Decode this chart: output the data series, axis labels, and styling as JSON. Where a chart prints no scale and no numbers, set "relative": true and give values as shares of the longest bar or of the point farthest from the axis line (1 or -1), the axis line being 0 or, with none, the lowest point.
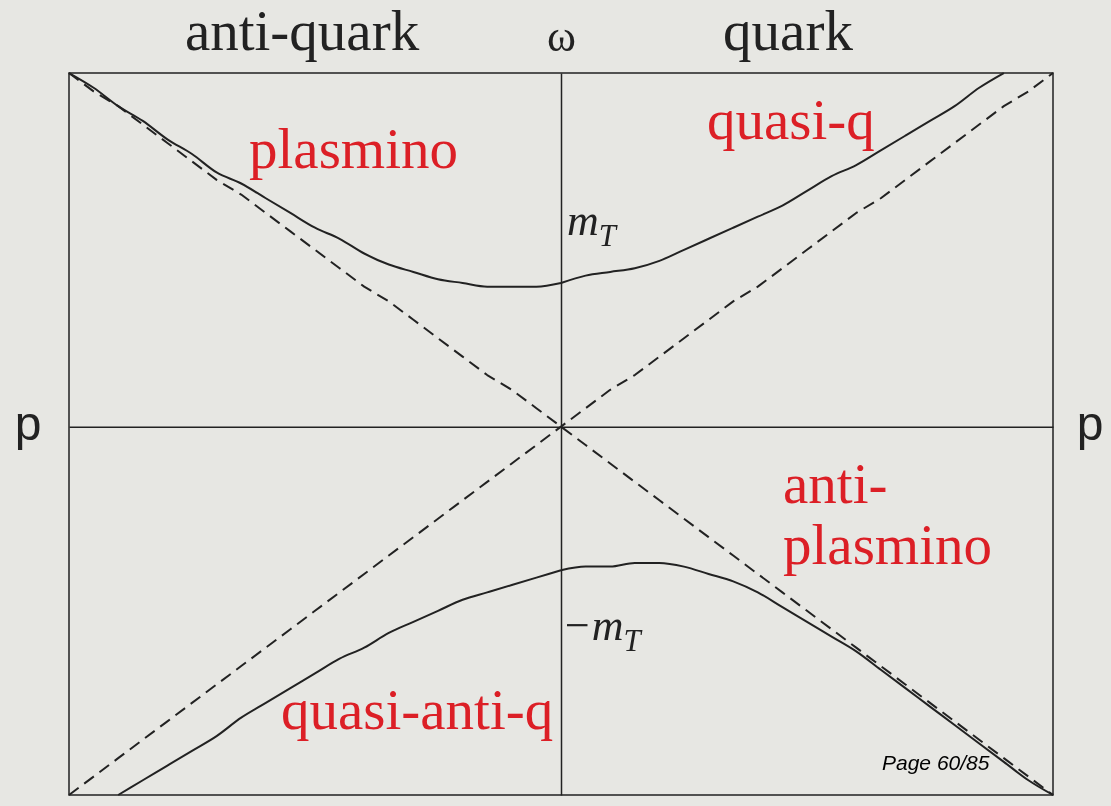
{
  "chart_data": {
    "type": "line",
    "relative": true,
    "xlabel": "p",
    "ylabel": "ω",
    "categories": [
      null,
      null,
      null,
      null,
      null,
      null,
      null,
      null,
      null,
      null,
      null,
      null,
      null,
      null,
      null,
      null,
      null,
      null,
      null,
      null,
      null,
      null,
      null,
      null,
      null,
      null,
      null,
      null,
      null,
      null,
      null,
      null,
      null,
      null,
      null,
      null,
      null,
      null,
      null,
      null,
      null
    ],
    "series": [
      {
        "name": "plasmino",
        "color": "#222222",
        "values": [
          0.96,
          0.92,
          0.87,
          0.83,
          0.78,
          0.74,
          0.69,
          0.66,
          0.62,
          0.58,
          0.54,
          0.51,
          0.47,
          0.44,
          0.42,
          0.4,
          0.39,
          0.38,
          0.38,
          0.38,
          0.39,
          null,
          null,
          null,
          null,
          null,
          null,
          null,
          null,
          null,
          null,
          null,
          null,
          null,
          null,
          null,
          null,
          null,
          null,
          null,
          null
        ]
      },
      {
        "name": "quasi-q",
        "color": "#222222",
        "values": [
          null,
          null,
          null,
          null,
          null,
          null,
          null,
          null,
          null,
          null,
          null,
          null,
          null,
          null,
          null,
          null,
          null,
          null,
          null,
          null,
          0.39,
          0.41,
          0.42,
          0.43,
          0.45,
          0.48,
          0.51,
          0.54,
          0.57,
          0.6,
          0.64,
          0.68,
          0.71,
          0.75,
          0.79,
          0.83,
          0.87,
          0.92,
          0.96,
          null,
          null
        ]
      },
      {
        "name": "anti-plasmino",
        "color": "#222222",
        "values": [
          null,
          null,
          null,
          null,
          null,
          null,
          null,
          null,
          null,
          null,
          null,
          null,
          null,
          null,
          null,
          null,
          null,
          null,
          null,
          null,
          -0.39,
          -0.38,
          -0.38,
          -0.37,
          -0.37,
          -0.38,
          -0.4,
          -0.42,
          -0.45,
          -0.49,
          -0.53,
          -0.57,
          -0.61,
          -0.66,
          -0.71,
          -0.76,
          -0.81,
          -0.86,
          -0.91,
          -0.96,
          -1.0
        ]
      },
      {
        "name": "quasi-anti-q",
        "color": "#222222",
        "values": [
          null,
          null,
          -1.0,
          -0.96,
          -0.92,
          -0.88,
          -0.84,
          -0.79,
          -0.75,
          -0.71,
          -0.67,
          -0.63,
          -0.6,
          -0.56,
          -0.53,
          -0.5,
          -0.47,
          -0.45,
          -0.43,
          -0.41,
          -0.39,
          null,
          null,
          null,
          null,
          null,
          null,
          null,
          null,
          null,
          null,
          null,
          null,
          null,
          null,
          null,
          null,
          null,
          null,
          null,
          null
        ]
      },
      {
        "color": "#222222",
        "line_style": "dashed",
        "values": [
          0.96,
          0.91,
          0.87,
          0.82,
          0.77,
          0.72,
          0.67,
          0.63,
          0.58,
          0.53,
          0.48,
          0.43,
          0.38,
          0.34,
          0.29,
          0.24,
          0.19,
          0.14,
          0.1,
          0.05,
          0,
          -0.05,
          -0.1,
          -0.15,
          -0.2,
          -0.25,
          -0.3,
          -0.35,
          -0.4,
          -0.45,
          -0.5,
          -0.55,
          -0.6,
          -0.65,
          -0.7,
          -0.75,
          -0.8,
          -0.85,
          -0.9,
          -0.95,
          -1
        ]
      },
      {
        "color": "#222222",
        "line_style": "dashed",
        "values": [
          -1,
          -0.95,
          -0.9,
          -0.85,
          -0.8,
          -0.75,
          -0.7,
          -0.65,
          -0.6,
          -0.55,
          -0.5,
          -0.45,
          -0.4,
          -0.35,
          -0.3,
          -0.25,
          -0.2,
          -0.15,
          -0.1,
          -0.05,
          0,
          0.05,
          0.1,
          0.14,
          0.19,
          0.24,
          0.29,
          0.34,
          0.38,
          0.43,
          0.48,
          0.53,
          0.58,
          0.62,
          0.67,
          0.72,
          0.77,
          0.82,
          0.87,
          0.91,
          0.96
        ]
      }
    ],
    "annotations": [
      "anti-quark",
      "quark",
      "m$_{T}$",
      "−m$_{T}$",
      "Page 60/85"
    ]
  }
}
